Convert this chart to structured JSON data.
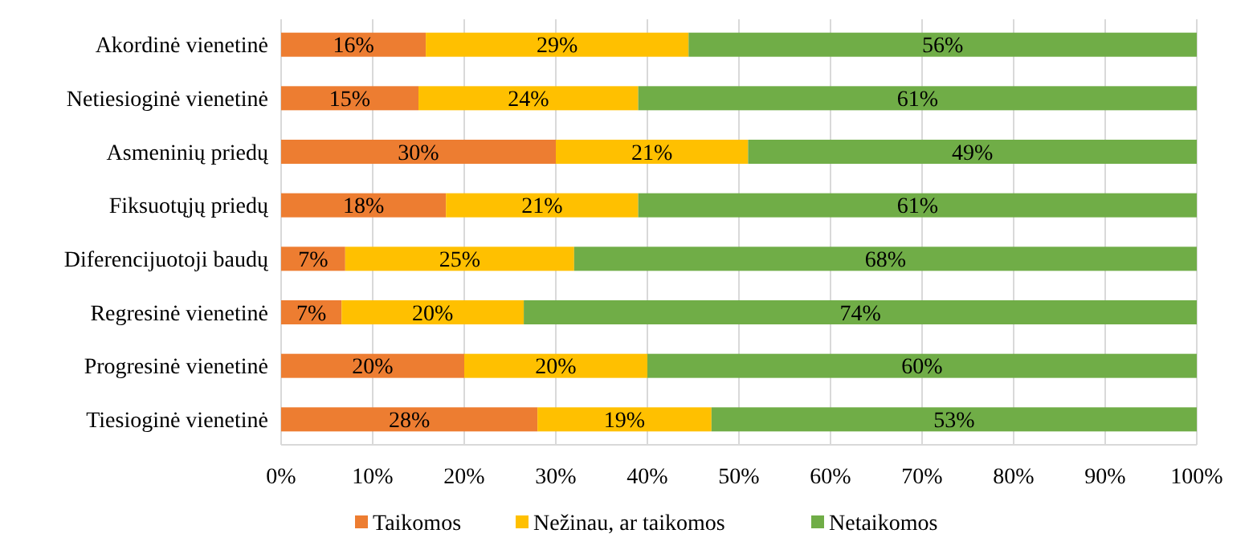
{
  "chart_data": {
    "type": "bar",
    "orientation": "horizontal",
    "stacked": true,
    "categories": [
      "Akordinė vienetinė",
      "Netiesioginė vienetinė",
      "Asmeninių priedų",
      "Fiksuotųjų priedų",
      "Diferencijuotoji baudų",
      "Regresinė vienetinė",
      "Progresinė vienetinė",
      "Tiesioginė vienetinė"
    ],
    "series": [
      {
        "name": "Taikomos",
        "color": "#ed7d31",
        "values": [
          15.8,
          15,
          30,
          18,
          7,
          6.6,
          20,
          28
        ],
        "value_labels": [
          "16%",
          "15%",
          "30%",
          "18%",
          "7%",
          "7%",
          "20%",
          "28%"
        ]
      },
      {
        "name": "Nežinau, ar taikomos",
        "color": "#ffc000",
        "values": [
          28.7,
          24,
          21,
          21,
          25,
          19.9,
          20,
          19
        ],
        "value_labels": [
          "29%",
          "24%",
          "21%",
          "21%",
          "25%",
          "20%",
          "20%",
          "19%"
        ]
      },
      {
        "name": "Netaikomos",
        "color": "#70ad47",
        "values": [
          55.5,
          61,
          49,
          61,
          68,
          73.5,
          60,
          53
        ],
        "value_labels": [
          "56%",
          "61%",
          "49%",
          "61%",
          "68%",
          "74%",
          "60%",
          "53%"
        ]
      }
    ],
    "xlim": [
      0,
      100
    ],
    "xticks": [
      {
        "value": 0,
        "label": "0%"
      },
      {
        "value": 10,
        "label": "10%"
      },
      {
        "value": 20,
        "label": "20%"
      },
      {
        "value": 30,
        "label": "30%"
      },
      {
        "value": 40,
        "label": "40%"
      },
      {
        "value": 50,
        "label": "50%"
      },
      {
        "value": 60,
        "label": "60%"
      },
      {
        "value": 70,
        "label": "70%"
      },
      {
        "value": 80,
        "label": "80%"
      },
      {
        "value": 90,
        "label": "90%"
      },
      {
        "value": 100,
        "label": "100%"
      }
    ],
    "grid": "x",
    "legend": "bottom"
  }
}
